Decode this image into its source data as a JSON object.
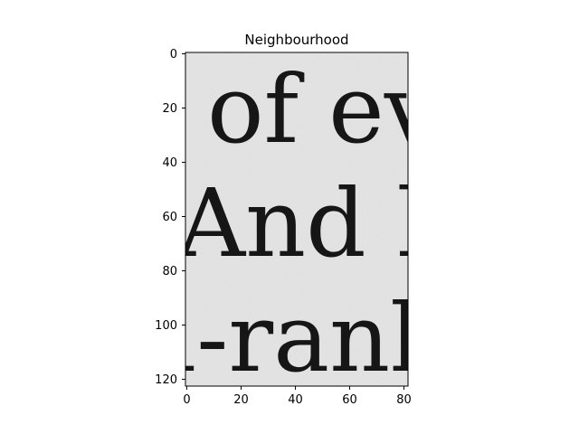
{
  "figure": {
    "title": "Neighbourhood",
    "image": {
      "shape": [
        123,
        82
      ],
      "background": "#ebebeb",
      "ink": "#161616",
      "lines": [
        "of ev",
        "And h",
        "l-rank"
      ]
    },
    "x_ticks": [
      "0",
      "20",
      "40",
      "60",
      "80"
    ],
    "y_ticks": [
      "0",
      "20",
      "40",
      "60",
      "80",
      "100",
      "120"
    ]
  }
}
